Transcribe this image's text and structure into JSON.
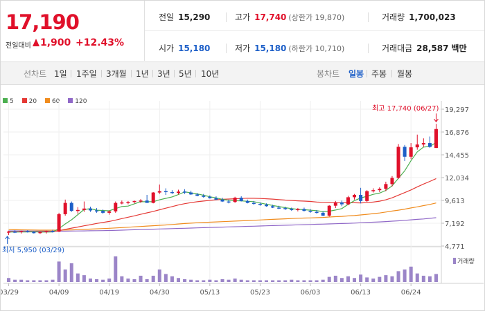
{
  "summary": {
    "price": "17,190",
    "change_label": "전일대비",
    "change": "1,900",
    "change_pct": "+12.43%"
  },
  "stats": {
    "prev_close": {
      "label": "전일",
      "value": "15,290"
    },
    "high": {
      "label": "고가",
      "value": "17,740",
      "sub": "(상한가 19,870)"
    },
    "volume": {
      "label": "거래량",
      "value": "1,700,023"
    },
    "open": {
      "label": "시가",
      "value": "15,180"
    },
    "low": {
      "label": "저가",
      "value": "15,180",
      "sub": "(하한가 10,710)"
    },
    "amount": {
      "label": "거래대금",
      "value": "28,587",
      "unit": "백만"
    }
  },
  "period_tabs": {
    "label": "선차트",
    "items": [
      "1일",
      "1주일",
      "3개월",
      "1년",
      "3년",
      "5년",
      "10년"
    ]
  },
  "candle_tabs": {
    "label": "봉차트",
    "items": [
      "일봉",
      "주봉",
      "월봉"
    ],
    "active": "일봉"
  },
  "colors": {
    "up": "#e0102a",
    "down": "#1d5fc8",
    "ma5": "#4caf50",
    "ma20": "#e53935",
    "ma60": "#f08c1e",
    "ma120": "#9068c8",
    "volume": "#9b85c8"
  },
  "chart_data": {
    "type": "candlestick",
    "legend": [
      {
        "name": "5",
        "color": "#4caf50"
      },
      {
        "name": "20",
        "color": "#e53935"
      },
      {
        "name": "60",
        "color": "#f08c1e"
      },
      {
        "name": "120",
        "color": "#9068c8"
      }
    ],
    "y_ticks": [
      19297,
      16876,
      14455,
      12034,
      9613,
      7192,
      4771
    ],
    "y_tick_labels": [
      "19,297",
      "16,876",
      "14,455",
      "12,034",
      "9,613",
      "7,192",
      "4,771"
    ],
    "ylim": [
      4771,
      19297
    ],
    "x_ticks": [
      {
        "label": "03/29",
        "i": 0
      },
      {
        "label": "04/09",
        "i": 8
      },
      {
        "label": "04/19",
        "i": 16
      },
      {
        "label": "04/30",
        "i": 24
      },
      {
        "label": "05/13",
        "i": 32
      },
      {
        "label": "05/23",
        "i": 40
      },
      {
        "label": "06/03",
        "i": 48
      },
      {
        "label": "06/13",
        "i": 56
      },
      {
        "label": "06/24",
        "i": 64
      }
    ],
    "high_annotation": "최고 17,740 (06/27)",
    "low_annotation": "최저 5,950 (03/29)",
    "volume_label": "거래량",
    "candles": [
      {
        "o": 6200,
        "h": 6400,
        "l": 5950,
        "c": 6300,
        "v": 7
      },
      {
        "o": 6300,
        "h": 6450,
        "l": 6150,
        "c": 6250,
        "v": 4
      },
      {
        "o": 6250,
        "h": 6400,
        "l": 6100,
        "c": 6350,
        "v": 4
      },
      {
        "o": 6350,
        "h": 6450,
        "l": 6200,
        "c": 6250,
        "v": 3
      },
      {
        "o": 6250,
        "h": 6350,
        "l": 6100,
        "c": 6150,
        "v": 3
      },
      {
        "o": 6150,
        "h": 6300,
        "l": 6050,
        "c": 6250,
        "v": 3
      },
      {
        "o": 6250,
        "h": 6400,
        "l": 6100,
        "c": 6350,
        "v": 3
      },
      {
        "o": 6350,
        "h": 6500,
        "l": 6200,
        "c": 6300,
        "v": 4
      },
      {
        "o": 6300,
        "h": 8300,
        "l": 6250,
        "c": 8150,
        "v": 36
      },
      {
        "o": 8150,
        "h": 9700,
        "l": 8000,
        "c": 9350,
        "v": 22
      },
      {
        "o": 9350,
        "h": 9500,
        "l": 8400,
        "c": 8500,
        "v": 33
      },
      {
        "o": 8500,
        "h": 8900,
        "l": 8200,
        "c": 8600,
        "v": 15
      },
      {
        "o": 8600,
        "h": 9500,
        "l": 8400,
        "c": 8750,
        "v": 12
      },
      {
        "o": 8750,
        "h": 8950,
        "l": 8400,
        "c": 8550,
        "v": 6
      },
      {
        "o": 8550,
        "h": 8800,
        "l": 8300,
        "c": 8500,
        "v": 5
      },
      {
        "o": 8500,
        "h": 8650,
        "l": 8200,
        "c": 8300,
        "v": 4
      },
      {
        "o": 8300,
        "h": 8550,
        "l": 8100,
        "c": 8450,
        "v": 6
      },
      {
        "o": 8450,
        "h": 9500,
        "l": 8300,
        "c": 9350,
        "v": 45
      },
      {
        "o": 9350,
        "h": 9600,
        "l": 9200,
        "c": 9400,
        "v": 10
      },
      {
        "o": 9400,
        "h": 9550,
        "l": 9200,
        "c": 9450,
        "v": 6
      },
      {
        "o": 9450,
        "h": 9600,
        "l": 9300,
        "c": 9550,
        "v": 5
      },
      {
        "o": 9550,
        "h": 9750,
        "l": 9350,
        "c": 9600,
        "v": 11
      },
      {
        "o": 9600,
        "h": 10200,
        "l": 9400,
        "c": 9350,
        "v": 5
      },
      {
        "o": 9350,
        "h": 10500,
        "l": 9300,
        "c": 10450,
        "v": 11
      },
      {
        "o": 10450,
        "h": 11300,
        "l": 10300,
        "c": 10600,
        "v": 22
      },
      {
        "o": 10600,
        "h": 10900,
        "l": 10200,
        "c": 10500,
        "v": 14
      },
      {
        "o": 10500,
        "h": 10700,
        "l": 10300,
        "c": 10400,
        "v": 10
      },
      {
        "o": 10400,
        "h": 10750,
        "l": 10250,
        "c": 10550,
        "v": 7
      },
      {
        "o": 10550,
        "h": 10800,
        "l": 10300,
        "c": 10450,
        "v": 5
      },
      {
        "o": 10450,
        "h": 10650,
        "l": 10200,
        "c": 10250,
        "v": 4
      },
      {
        "o": 10250,
        "h": 10400,
        "l": 10050,
        "c": 10100,
        "v": 3
      },
      {
        "o": 10100,
        "h": 10300,
        "l": 9900,
        "c": 10000,
        "v": 3
      },
      {
        "o": 10000,
        "h": 10150,
        "l": 9800,
        "c": 9850,
        "v": 4
      },
      {
        "o": 9850,
        "h": 10050,
        "l": 9650,
        "c": 9700,
        "v": 3
      },
      {
        "o": 9700,
        "h": 9900,
        "l": 9450,
        "c": 9500,
        "v": 5
      },
      {
        "o": 9500,
        "h": 9700,
        "l": 9300,
        "c": 9450,
        "v": 4
      },
      {
        "o": 9450,
        "h": 10000,
        "l": 9350,
        "c": 9900,
        "v": 6
      },
      {
        "o": 9900,
        "h": 10050,
        "l": 9500,
        "c": 9550,
        "v": 4
      },
      {
        "o": 9550,
        "h": 9700,
        "l": 9300,
        "c": 9350,
        "v": 3
      },
      {
        "o": 9350,
        "h": 9550,
        "l": 9150,
        "c": 9250,
        "v": 3
      },
      {
        "o": 9250,
        "h": 9400,
        "l": 9050,
        "c": 9150,
        "v": 3
      },
      {
        "o": 9150,
        "h": 9300,
        "l": 8950,
        "c": 9000,
        "v": 3
      },
      {
        "o": 9000,
        "h": 9150,
        "l": 8800,
        "c": 8850,
        "v": 3
      },
      {
        "o": 8850,
        "h": 9050,
        "l": 8700,
        "c": 8800,
        "v": 3
      },
      {
        "o": 8800,
        "h": 8950,
        "l": 8600,
        "c": 8700,
        "v": 3
      },
      {
        "o": 8700,
        "h": 8850,
        "l": 8500,
        "c": 8600,
        "v": 4
      },
      {
        "o": 8600,
        "h": 8800,
        "l": 8450,
        "c": 8700,
        "v": 3
      },
      {
        "o": 8700,
        "h": 8850,
        "l": 8450,
        "c": 8500,
        "v": 3
      },
      {
        "o": 8500,
        "h": 8700,
        "l": 8300,
        "c": 8400,
        "v": 3
      },
      {
        "o": 8400,
        "h": 8600,
        "l": 8200,
        "c": 8300,
        "v": 3
      },
      {
        "o": 8300,
        "h": 8450,
        "l": 7950,
        "c": 8000,
        "v": 4
      },
      {
        "o": 8000,
        "h": 9100,
        "l": 7900,
        "c": 9050,
        "v": 9
      },
      {
        "o": 9050,
        "h": 9550,
        "l": 8800,
        "c": 9400,
        "v": 11
      },
      {
        "o": 9400,
        "h": 9600,
        "l": 9000,
        "c": 9200,
        "v": 7
      },
      {
        "o": 9200,
        "h": 10100,
        "l": 9100,
        "c": 9950,
        "v": 10
      },
      {
        "o": 9950,
        "h": 10300,
        "l": 9700,
        "c": 10200,
        "v": 7
      },
      {
        "o": 10200,
        "h": 10950,
        "l": 9300,
        "c": 9550,
        "v": 13
      },
      {
        "o": 9550,
        "h": 10700,
        "l": 9450,
        "c": 10600,
        "v": 8
      },
      {
        "o": 10600,
        "h": 10900,
        "l": 10450,
        "c": 10700,
        "v": 6
      },
      {
        "o": 10700,
        "h": 11000,
        "l": 10500,
        "c": 10850,
        "v": 9
      },
      {
        "o": 10850,
        "h": 11600,
        "l": 10600,
        "c": 11350,
        "v": 12
      },
      {
        "o": 11350,
        "h": 12200,
        "l": 11100,
        "c": 12000,
        "v": 10
      },
      {
        "o": 12000,
        "h": 15600,
        "l": 11900,
        "c": 15300,
        "v": 19
      },
      {
        "o": 15300,
        "h": 15500,
        "l": 13800,
        "c": 14250,
        "v": 22
      },
      {
        "o": 14250,
        "h": 15700,
        "l": 14000,
        "c": 15250,
        "v": 27
      },
      {
        "o": 15250,
        "h": 16600,
        "l": 15000,
        "c": 15550,
        "v": 15
      },
      {
        "o": 15550,
        "h": 16200,
        "l": 15300,
        "c": 15700,
        "v": 11
      },
      {
        "o": 15700,
        "h": 16400,
        "l": 15200,
        "c": 15290,
        "v": 10
      },
      {
        "o": 15180,
        "h": 17740,
        "l": 15180,
        "c": 17190,
        "v": 14
      }
    ],
    "ma5": [
      6270,
      6250,
      6260,
      6270,
      6280,
      6250,
      6250,
      6260,
      6620,
      7120,
      7560,
      8100,
      8650,
      8740,
      8580,
      8540,
      8510,
      8750,
      8970,
      9010,
      9250,
      9480,
      9470,
      9470,
      9680,
      9830,
      9990,
      10240,
      10520,
      10420,
      10300,
      10160,
      10000,
      9880,
      9730,
      9630,
      9580,
      9560,
      9520,
      9480,
      9340,
      9210,
      9080,
      8960,
      8840,
      8740,
      8670,
      8630,
      8580,
      8530,
      8430,
      8470,
      8590,
      8750,
      9190,
      9590,
      9870,
      10050,
      10260,
      10390,
      10680,
      11160,
      11960,
      12750,
      13840,
      14760,
      15280,
      15340,
      15770
    ],
    "ma20": [
      6300,
      6300,
      6300,
      6300,
      6300,
      6300,
      6300,
      6300,
      6390,
      6550,
      6670,
      6790,
      6920,
      7040,
      7170,
      7270,
      7380,
      7530,
      7680,
      7830,
      7980,
      8140,
      8290,
      8450,
      8620,
      8790,
      8960,
      9130,
      9270,
      9380,
      9470,
      9550,
      9620,
      9680,
      9730,
      9760,
      9790,
      9820,
      9850,
      9840,
      9820,
      9790,
      9750,
      9700,
      9650,
      9610,
      9570,
      9540,
      9500,
      9440,
      9410,
      9400,
      9380,
      9370,
      9380,
      9360,
      9350,
      9380,
      9440,
      9530,
      9680,
      9890,
      10170,
      10440,
      10730,
      11050,
      11350,
      11630,
      11930
    ],
    "ma60": [
      6520,
      6500,
      6490,
      6480,
      6470,
      6460,
      6460,
      6460,
      6460,
      6470,
      6490,
      6510,
      6540,
      6570,
      6600,
      6630,
      6660,
      6690,
      6730,
      6770,
      6810,
      6850,
      6890,
      6930,
      6970,
      7010,
      7060,
      7110,
      7160,
      7200,
      7240,
      7270,
      7300,
      7330,
      7360,
      7390,
      7420,
      7450,
      7480,
      7510,
      7540,
      7570,
      7600,
      7630,
      7660,
      7690,
      7720,
      7740,
      7760,
      7780,
      7810,
      7850,
      7890,
      7920,
      7970,
      8010,
      8070,
      8140,
      8210,
      8280,
      8380,
      8480,
      8580,
      8690,
      8810,
      8930,
      9060,
      9190,
      9340
    ],
    "ma120": [
      6380,
      6380,
      6370,
      6370,
      6360,
      6360,
      6360,
      6350,
      6350,
      6350,
      6360,
      6370,
      6380,
      6390,
      6400,
      6410,
      6420,
      6440,
      6460,
      6480,
      6500,
      6520,
      6540,
      6560,
      6580,
      6600,
      6620,
      6640,
      6660,
      6680,
      6700,
      6720,
      6740,
      6760,
      6780,
      6800,
      6820,
      6840,
      6860,
      6880,
      6900,
      6920,
      6940,
      6960,
      6980,
      7000,
      7020,
      7040,
      7060,
      7080,
      7100,
      7120,
      7140,
      7160,
      7180,
      7210,
      7240,
      7270,
      7300,
      7330,
      7370,
      7410,
      7450,
      7500,
      7550,
      7600,
      7650,
      7710,
      7780
    ],
    "volume_max": 45
  }
}
